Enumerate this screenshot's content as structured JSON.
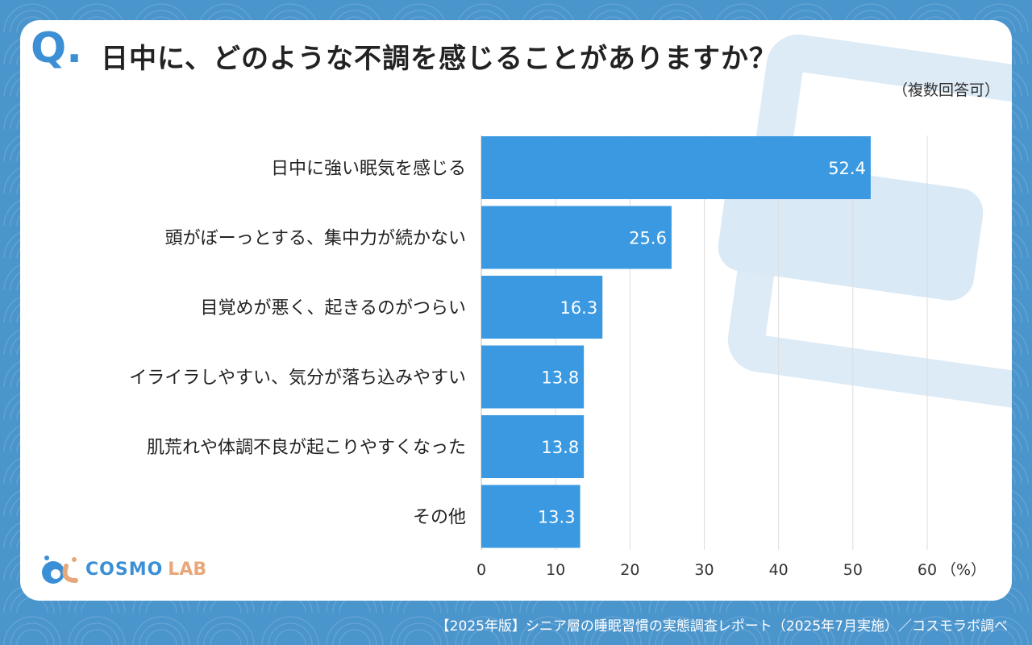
{
  "header": {
    "q_mark": "Q.",
    "question": "日中に、どのような不調を感じることがありますか？",
    "note": "（複数回答可）"
  },
  "footer": {
    "source": "【2025年版】シニア層の睡眠習慣の実態調査レポート（2025年7月実施）／コスモラボ調べ"
  },
  "logo": {
    "text1": "COSMO",
    "text2": "LAB"
  },
  "colors": {
    "bar": "#3a99e0",
    "background": "#4b95cd",
    "accent": "#3c8fd4"
  },
  "chart_data": {
    "type": "bar",
    "orientation": "horizontal",
    "categories": [
      "日中に強い眠気を感じる",
      "頭がぼーっとする、集中力が続かない",
      "目覚めが悪く、起きるのがつらい",
      "イライラしやすい、気分が落ち込みやすい",
      "肌荒れや体調不良が起こりやすくなった",
      "その他"
    ],
    "values": [
      52.4,
      25.6,
      16.3,
      13.8,
      13.8,
      13.3
    ],
    "xlim": [
      0,
      60
    ],
    "xticks": [
      "0",
      "10",
      "20",
      "30",
      "40",
      "50",
      "60"
    ],
    "xunit": "（%）",
    "grid": true
  }
}
